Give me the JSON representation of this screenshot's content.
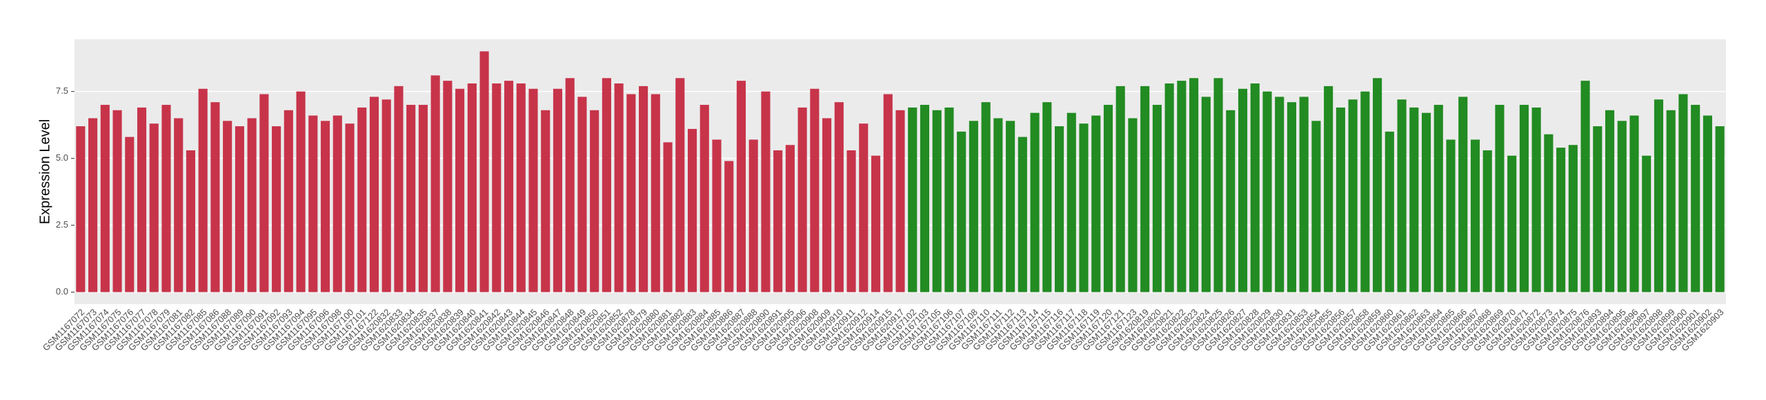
{
  "chart_data": {
    "type": "bar",
    "y_label": "Expression Level",
    "categories": [
      "GSM1167072",
      "GSM1167073",
      "GSM1167074",
      "GSM1167075",
      "GSM1167076",
      "GSM1167077",
      "GSM1167078",
      "GSM1167079",
      "GSM1167081",
      "GSM1167082",
      "GSM1167085",
      "GSM1167086",
      "GSM1167088",
      "GSM1167089",
      "GSM1167090",
      "GSM1167091",
      "GSM1167092",
      "GSM1167093",
      "GSM1167094",
      "GSM1167095",
      "GSM1167096",
      "GSM1167098",
      "GSM1167100",
      "GSM1167101",
      "GSM1167122",
      "GSM1620832",
      "GSM1620833",
      "GSM1620834",
      "GSM1620835",
      "GSM1620837",
      "GSM1620838",
      "GSM1620839",
      "GSM1620840",
      "GSM1620841",
      "GSM1620842",
      "GSM1620843",
      "GSM1620844",
      "GSM1620845",
      "GSM1620846",
      "GSM1620847",
      "GSM1620848",
      "GSM1620849",
      "GSM1620850",
      "GSM1620851",
      "GSM1620852",
      "GSM1620878",
      "GSM1620879",
      "GSM1620880",
      "GSM1620881",
      "GSM1620882",
      "GSM1620883",
      "GSM1620884",
      "GSM1620885",
      "GSM1620886",
      "GSM1620887",
      "GSM1620888",
      "GSM1620890",
      "GSM1620891",
      "GSM1620905",
      "GSM1620906",
      "GSM1620908",
      "GSM1620909",
      "GSM1620910",
      "GSM1620911",
      "GSM1620912",
      "GSM1620914",
      "GSM1620915",
      "GSM1620917",
      "GSM1167102",
      "GSM1167103",
      "GSM1167105",
      "GSM1167106",
      "GSM1167107",
      "GSM1167108",
      "GSM1167110",
      "GSM1167111",
      "GSM1167112",
      "GSM1167113",
      "GSM1167114",
      "GSM1167115",
      "GSM1167116",
      "GSM1167117",
      "GSM1167118",
      "GSM1167119",
      "GSM1167120",
      "GSM1167121",
      "GSM1167123",
      "GSM1620819",
      "GSM1620820",
      "GSM1620821",
      "GSM1620822",
      "GSM1620823",
      "GSM1620824",
      "GSM1620825",
      "GSM1620826",
      "GSM1620827",
      "GSM1620828",
      "GSM1620829",
      "GSM1620830",
      "GSM1620831",
      "GSM1620853",
      "GSM1620854",
      "GSM1620855",
      "GSM1620856",
      "GSM1620857",
      "GSM1620858",
      "GSM1620859",
      "GSM1620860",
      "GSM1620861",
      "GSM1620862",
      "GSM1620863",
      "GSM1620864",
      "GSM1620865",
      "GSM1620866",
      "GSM1620867",
      "GSM1620868",
      "GSM1620869",
      "GSM1620870",
      "GSM1620871",
      "GSM1620872",
      "GSM1620873",
      "GSM1620874",
      "GSM1620875",
      "GSM1620876",
      "GSM1620893",
      "GSM1620894",
      "GSM1620895",
      "GSM1620896",
      "GSM1620897",
      "GSM1620898",
      "GSM1620899",
      "GSM1620900",
      "GSM1620901",
      "GSM1620902",
      "GSM1620903"
    ],
    "values": [
      6.2,
      6.5,
      7.0,
      6.8,
      5.8,
      6.9,
      6.3,
      7.0,
      6.5,
      5.3,
      7.6,
      7.1,
      6.4,
      6.2,
      6.5,
      7.4,
      6.2,
      6.8,
      7.5,
      6.6,
      6.4,
      6.6,
      6.3,
      6.9,
      7.3,
      7.2,
      7.7,
      7.0,
      7.0,
      8.1,
      7.9,
      7.6,
      7.8,
      9.0,
      7.8,
      7.9,
      7.8,
      7.6,
      6.8,
      7.6,
      8.0,
      7.3,
      6.8,
      8.0,
      7.8,
      7.4,
      7.7,
      7.4,
      5.6,
      8.0,
      6.1,
      7.0,
      5.7,
      4.9,
      7.9,
      5.7,
      7.5,
      5.3,
      5.5,
      6.9,
      7.6,
      6.5,
      7.1,
      5.3,
      6.3,
      5.1,
      7.4,
      6.8,
      6.9,
      7.0,
      6.8,
      6.9,
      6.0,
      6.4,
      7.1,
      6.5,
      6.4,
      5.8,
      6.7,
      7.1,
      6.2,
      6.7,
      6.3,
      6.6,
      7.0,
      7.7,
      6.5,
      7.7,
      7.0,
      7.8,
      7.9,
      8.0,
      7.3,
      8.0,
      6.8,
      7.6,
      7.8,
      7.5,
      7.3,
      7.1,
      7.3,
      6.4,
      7.7,
      6.9,
      7.2,
      7.5,
      8.0,
      6.0,
      7.2,
      6.9,
      6.7,
      7.0,
      5.7,
      7.3,
      5.7,
      5.3,
      7.0,
      5.1,
      7.0,
      6.9,
      5.9,
      5.4,
      5.5,
      7.9,
      6.2,
      6.8,
      6.4,
      6.6,
      5.1,
      7.2,
      6.8,
      7.4,
      7.0,
      6.6,
      6.2
    ],
    "colors": [
      "#c7344a",
      "#c7344a",
      "#c7344a",
      "#c7344a",
      "#c7344a",
      "#c7344a",
      "#c7344a",
      "#c7344a",
      "#c7344a",
      "#c7344a",
      "#c7344a",
      "#c7344a",
      "#c7344a",
      "#c7344a",
      "#c7344a",
      "#c7344a",
      "#c7344a",
      "#c7344a",
      "#c7344a",
      "#c7344a",
      "#c7344a",
      "#c7344a",
      "#c7344a",
      "#c7344a",
      "#c7344a",
      "#c7344a",
      "#c7344a",
      "#c7344a",
      "#c7344a",
      "#c7344a",
      "#c7344a",
      "#c7344a",
      "#c7344a",
      "#c7344a",
      "#c7344a",
      "#c7344a",
      "#c7344a",
      "#c7344a",
      "#c7344a",
      "#c7344a",
      "#c7344a",
      "#c7344a",
      "#c7344a",
      "#c7344a",
      "#c7344a",
      "#c7344a",
      "#c7344a",
      "#c7344a",
      "#c7344a",
      "#c7344a",
      "#c7344a",
      "#c7344a",
      "#c7344a",
      "#c7344a",
      "#c7344a",
      "#c7344a",
      "#c7344a",
      "#c7344a",
      "#c7344a",
      "#c7344a",
      "#c7344a",
      "#c7344a",
      "#c7344a",
      "#c7344a",
      "#c7344a",
      "#c7344a",
      "#c7344a",
      "#c7344a",
      "#228b22",
      "#228b22",
      "#228b22",
      "#228b22",
      "#228b22",
      "#228b22",
      "#228b22",
      "#228b22",
      "#228b22",
      "#228b22",
      "#228b22",
      "#228b22",
      "#228b22",
      "#228b22",
      "#228b22",
      "#228b22",
      "#228b22",
      "#228b22",
      "#228b22",
      "#228b22",
      "#228b22",
      "#228b22",
      "#228b22",
      "#228b22",
      "#228b22",
      "#228b22",
      "#228b22",
      "#228b22",
      "#228b22",
      "#228b22",
      "#228b22",
      "#228b22",
      "#228b22",
      "#228b22",
      "#228b22",
      "#228b22",
      "#228b22",
      "#228b22",
      "#228b22",
      "#228b22",
      "#228b22",
      "#228b22",
      "#228b22",
      "#228b22",
      "#228b22",
      "#228b22",
      "#228b22",
      "#228b22",
      "#228b22",
      "#228b22",
      "#228b22",
      "#228b22",
      "#228b22",
      "#228b22",
      "#228b22",
      "#228b22",
      "#228b22",
      "#228b22",
      "#228b22",
      "#228b22",
      "#228b22",
      "#228b22",
      "#228b22",
      "#228b22",
      "#228b22",
      "#228b22",
      "#228b22"
    ],
    "ylim": [
      -0.45,
      9.45
    ],
    "yticks": [
      {
        "value": 0,
        "label": "0.0"
      },
      {
        "value": 2.5,
        "label": "2.5"
      },
      {
        "value": 5,
        "label": "5.0"
      },
      {
        "value": 7.5,
        "label": "7.5"
      }
    ],
    "grid": true
  }
}
